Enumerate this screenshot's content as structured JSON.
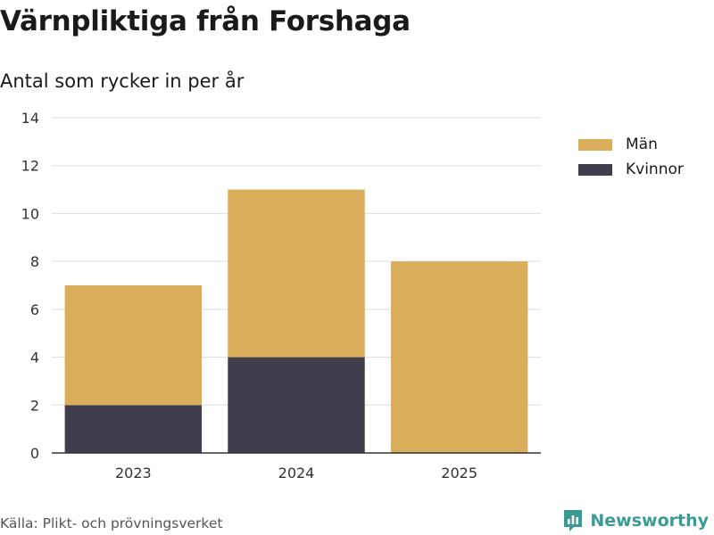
{
  "header": {
    "title": "Värnpliktiga från Forshaga",
    "subtitle": "Antal som rycker in per år"
  },
  "footer": {
    "source": "Källa: Plikt- och prövningsverket",
    "brand": "Newsworthy",
    "brand_icon": "newsworthy-logo-icon"
  },
  "colors": {
    "men": "#d9ad59",
    "women": "#423f4c",
    "grid": "#dedede",
    "axis": "#333333",
    "brand": "#3a9b95"
  },
  "chart_data": {
    "type": "bar",
    "stacked": true,
    "title": "Värnpliktiga från Forshaga",
    "subtitle": "Antal som rycker in per år",
    "xlabel": "",
    "ylabel": "",
    "categories": [
      "2023",
      "2024",
      "2025"
    ],
    "series": [
      {
        "name": "Kvinnor",
        "color": "#423f4c",
        "values": [
          2,
          4,
          0
        ]
      },
      {
        "name": "Män",
        "color": "#d9ad59",
        "values": [
          5,
          7,
          8
        ]
      }
    ],
    "ylim": [
      0,
      14
    ],
    "yticks": [
      "0",
      "2",
      "4",
      "6",
      "8",
      "10",
      "12",
      "14"
    ],
    "grid": true,
    "legend": {
      "placement": "right",
      "entries": [
        "Män",
        "Kvinnor"
      ]
    }
  }
}
